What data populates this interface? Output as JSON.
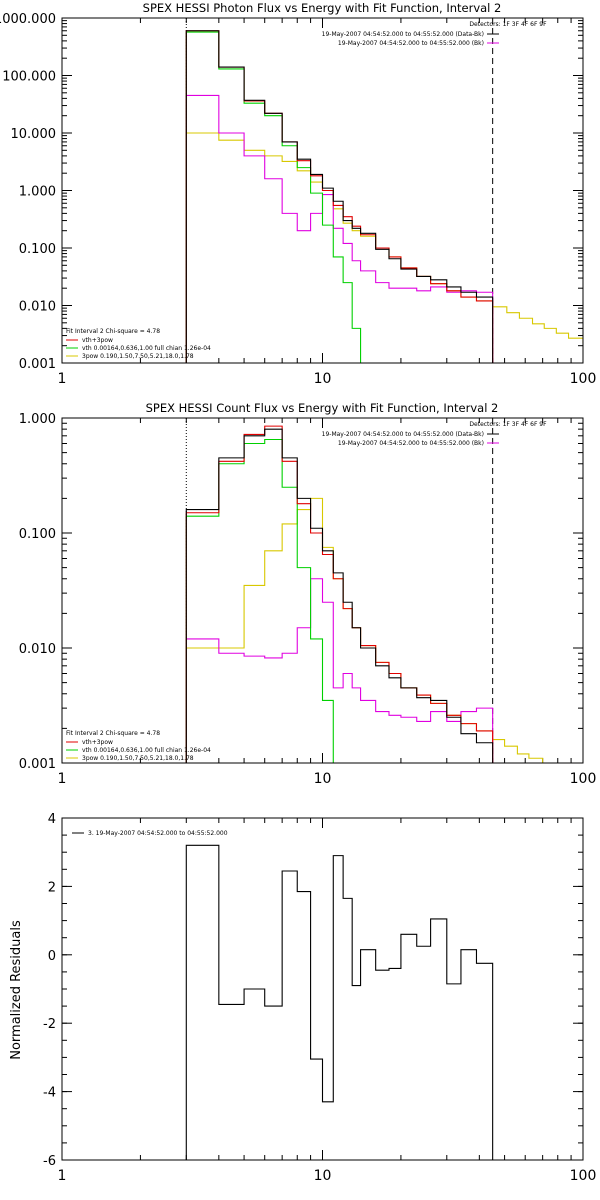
{
  "chart_data": [
    {
      "type": "line",
      "title": "SPEX HESSI Photon Flux vs Energy with Fit Function, Interval 2",
      "xlabel": "",
      "ylabel": "",
      "xscale": "log",
      "yscale": "log",
      "xlim": [
        1,
        100
      ],
      "ylim": [
        0.001,
        1000
      ],
      "x_ticks": [
        "1",
        "10",
        "100"
      ],
      "y_ticks": [
        "1000.000",
        "100.000",
        "10.000",
        "1.000",
        "0.100",
        "0.010",
        "0.001"
      ],
      "bin_edges": [
        3,
        4,
        5,
        6,
        7,
        8,
        9,
        10,
        11,
        12,
        13,
        14,
        16,
        18,
        20,
        23,
        26,
        30,
        34,
        39,
        45
      ],
      "series": [
        {
          "name": "19-May-2007 04:54:52.000 to 04:55:52.000 (Data-Bk)",
          "color": "#000000",
          "values": [
            600,
            140,
            37,
            22,
            7,
            3.5,
            1.9,
            1.1,
            0.65,
            0.3,
            0.22,
            0.18,
            0.095,
            0.065,
            0.043,
            0.032,
            0.028,
            0.021,
            0.017,
            0.014
          ]
        },
        {
          "name": "19-May-2007 04:54:52.000 to 04:55:52.000 (Bk)",
          "color": "#e000e0",
          "values": [
            45,
            10,
            4,
            1.6,
            0.4,
            0.2,
            0.4,
            0.85,
            0.22,
            0.12,
            0.06,
            0.04,
            0.025,
            0.02,
            0.02,
            0.018,
            0.021,
            0.017,
            0.018,
            0.017
          ]
        },
        {
          "name": "vth+3pow",
          "color": "#e00000",
          "values": [
            600,
            140,
            36,
            22,
            7,
            3.3,
            1.8,
            1.0,
            0.55,
            0.35,
            0.24,
            0.17,
            0.1,
            0.07,
            0.045,
            0.032,
            0.024,
            0.018,
            0.014,
            0.012
          ]
        },
        {
          "name": "vth 0.00164,0.636,1.00  full chian 1.26e-04",
          "color": "#00d000",
          "values": [
            570,
            130,
            33,
            20,
            6,
            2.5,
            0.9,
            0.25,
            0.07,
            0.025,
            0.004,
            0.0005
          ]
        },
        {
          "name": "3pow 0.190,1.50,7.50,5.21,18.0,1.78",
          "color": "#d8c800",
          "values": [
            10,
            7.5,
            5,
            4,
            3.2,
            2.2,
            1.4,
            1.0,
            0.48,
            0.27,
            0.2,
            0.16,
            0.1,
            0.07,
            0.045,
            0.032,
            0.024,
            0.018,
            0.014,
            0.012
          ],
          "extension": {
            "x": [
              45,
              51,
              57,
              64,
              71,
              79,
              88,
              100
            ],
            "values": [
              0.0095,
              0.0075,
              0.006,
              0.0048,
              0.004,
              0.0033,
              0.0027,
              0.0022
            ]
          }
        }
      ],
      "vlines": [
        {
          "x": 3,
          "style": "dotted"
        },
        {
          "x": 45,
          "style": "dashed"
        }
      ],
      "legend_top_right": {
        "detectors": "Detectors: 1F 3F 4F 6F 9F",
        "lines": [
          "19-May-2007 04:54:52.000 to 04:55:52.000 (Data-Bk)",
          "19-May-2007 04:54:52.000 to 04:55:52.000 (Bk)"
        ]
      },
      "legend_bottom_left": {
        "header": "Fit Interval  2   Chi-square = 4.78",
        "lines": [
          "vth+3pow",
          "vth 0.00164,0.636,1.00  full chian 1.26e-04",
          "3pow 0.190,1.50,7.50,5.21,18.0,1.78"
        ]
      },
      "legend_placement": [
        "top-right",
        "bottom-left"
      ],
      "grid": false
    },
    {
      "type": "line",
      "title": "SPEX HESSI Count Flux vs Energy with Fit Function, Interval 2",
      "xlabel": "",
      "ylabel": "",
      "xscale": "log",
      "yscale": "log",
      "xlim": [
        1,
        100
      ],
      "ylim": [
        0.001,
        1.0
      ],
      "x_ticks": [
        "1",
        "10",
        "100"
      ],
      "y_ticks": [
        "1.000",
        "0.100",
        "0.010",
        "0.001"
      ],
      "bin_edges": [
        3,
        4,
        5,
        6,
        7,
        8,
        9,
        10,
        11,
        12,
        13,
        14,
        16,
        18,
        20,
        23,
        26,
        30,
        34,
        39,
        45
      ],
      "series": [
        {
          "name": "19-May-2007 04:54:52.000 to 04:55:52.000 (Data-Bk)",
          "color": "#000000",
          "values": [
            0.16,
            0.45,
            0.7,
            0.8,
            0.45,
            0.2,
            0.11,
            0.07,
            0.045,
            0.025,
            0.015,
            0.01,
            0.007,
            0.0055,
            0.0045,
            0.0037,
            0.0035,
            0.0025,
            0.0018,
            0.0015
          ]
        },
        {
          "name": "19-May-2007 04:54:52.000 to 04:55:52.000 (Bk)",
          "color": "#e000e0",
          "values": [
            0.012,
            0.009,
            0.0085,
            0.0082,
            0.009,
            0.015,
            0.04,
            0.025,
            0.0045,
            0.006,
            0.0045,
            0.0035,
            0.0028,
            0.0026,
            0.0025,
            0.0023,
            0.0028,
            0.0023,
            0.0028,
            0.003
          ]
        },
        {
          "name": "vth+3pow",
          "color": "#e00000",
          "values": [
            0.15,
            0.42,
            0.72,
            0.85,
            0.42,
            0.18,
            0.1,
            0.065,
            0.04,
            0.022,
            0.015,
            0.0105,
            0.0075,
            0.006,
            0.0045,
            0.0039,
            0.0033,
            0.0026,
            0.0022,
            0.0019
          ]
        },
        {
          "name": "vth 0.00164,0.636,1.00  full chian 1.26e-04",
          "color": "#00d000",
          "values": [
            0.14,
            0.4,
            0.6,
            0.65,
            0.25,
            0.05,
            0.012,
            0.0035,
            0.001,
            0.0002
          ]
        },
        {
          "name": "3pow 0.190,1.50,7.50,5.21,18.0,1.78",
          "color": "#d8c800",
          "values": [
            0.01,
            0.01,
            0.035,
            0.07,
            0.12,
            0.16,
            0.2,
            0.075,
            0.04,
            0.022,
            0.015,
            0.0105,
            0.0075,
            0.006,
            0.0045,
            0.0039,
            0.0033,
            0.0026,
            0.0022,
            0.0019
          ],
          "extension": {
            "x": [
              45,
              50,
              56,
              62,
              70
            ],
            "values": [
              0.0016,
              0.0014,
              0.0012,
              0.0011,
              0.001
            ]
          }
        }
      ],
      "vlines": [
        {
          "x": 3,
          "style": "dotted"
        },
        {
          "x": 45,
          "style": "dashed"
        }
      ],
      "legend_top_right": {
        "detectors": "Detectors: 1F 3F 4F 6F 9F",
        "lines": [
          "19-May-2007 04:54:52.000 to 04:55:52.000 (Data-Bk)",
          "19-May-2007 04:54:52.000 to 04:55:52.000 (Bk)"
        ]
      },
      "legend_bottom_left": {
        "header": "Fit Interval  2   Chi-square = 4.78",
        "lines": [
          "vth+3pow",
          "vth 0.00164,0.636,1.00  full chian 1.26e-04",
          "3pow 0.190,1.50,7.50,5.21,18.0,1.78"
        ]
      },
      "legend_placement": [
        "top-right",
        "bottom-left"
      ],
      "grid": false
    },
    {
      "type": "line",
      "title": "",
      "xlabel": "",
      "ylabel": "Normalized Residuals",
      "xscale": "log",
      "yscale": "linear",
      "xlim": [
        1,
        100
      ],
      "ylim": [
        -6,
        4
      ],
      "x_ticks": [
        "1",
        "10",
        "100"
      ],
      "y_ticks": [
        "4",
        "2",
        "0",
        "-2",
        "-4",
        "-6"
      ],
      "bin_edges": [
        3,
        4,
        5,
        6,
        7,
        8,
        9,
        10,
        11,
        12,
        13,
        14,
        16,
        18,
        20,
        23,
        26,
        30,
        34,
        39,
        45
      ],
      "series": [
        {
          "name": "3. 19-May-2007 04:54:52.000 to 04:55:52.000",
          "color": "#000000",
          "values": [
            3.2,
            -1.45,
            -1.0,
            -1.5,
            2.45,
            1.85,
            -3.05,
            -4.3,
            2.9,
            1.65,
            -0.9,
            0.15,
            -0.45,
            -0.4,
            0.6,
            0.25,
            1.05,
            -0.85,
            0.15,
            -0.25
          ]
        }
      ],
      "legend_top_left": [
        "3. 19-May-2007 04:54:52.000 to 04:55:52.000"
      ],
      "legend_placement": "top-left",
      "grid": false
    }
  ]
}
